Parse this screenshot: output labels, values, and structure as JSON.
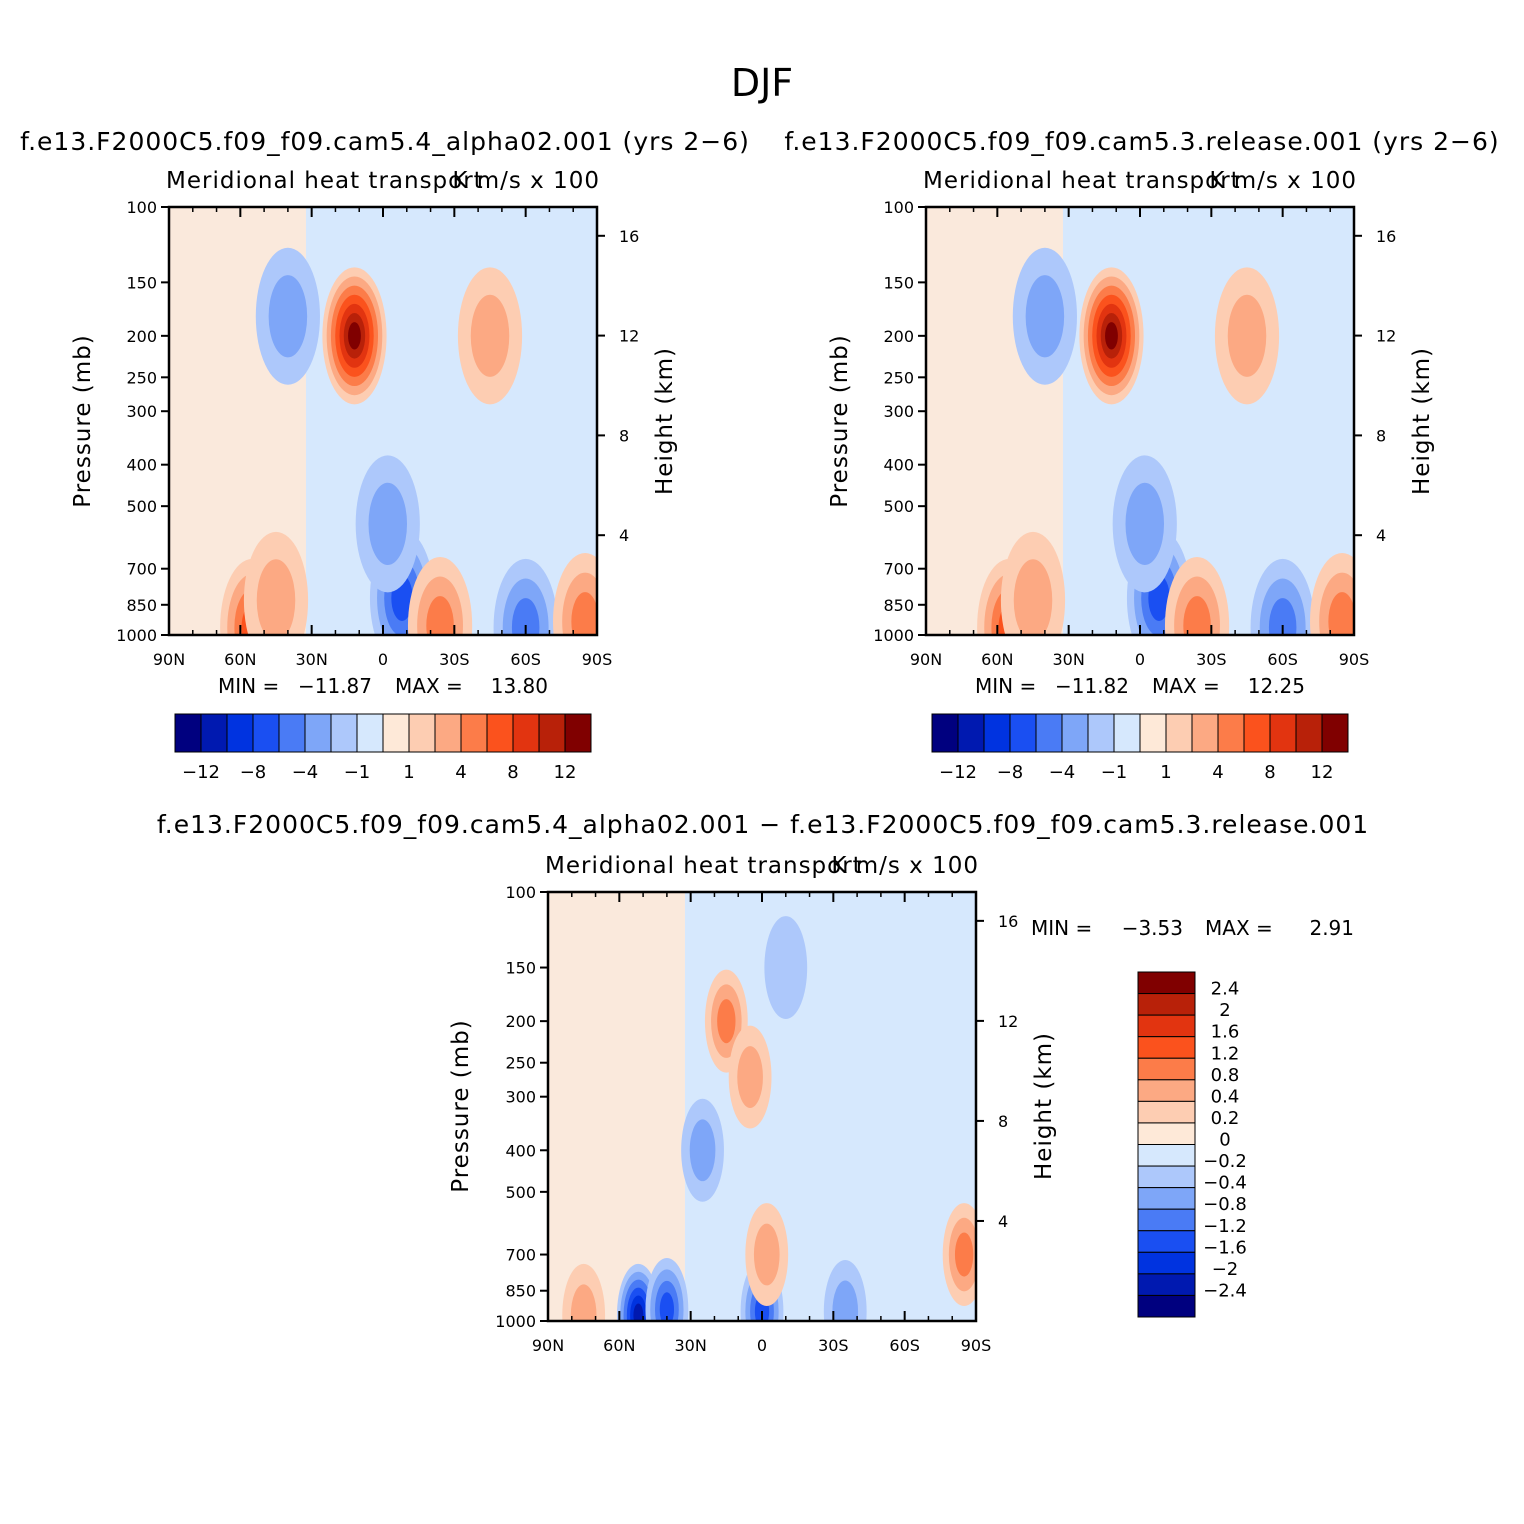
{
  "page": {
    "title": "DJF"
  },
  "colors": {
    "neg": [
      "#00007f",
      "#0019b0",
      "#0033e0",
      "#1a4ff2",
      "#4a7bf5",
      "#7ea6f8",
      "#adc8fb",
      "#d6e8fd"
    ],
    "pos": [
      "#fee9d8",
      "#fdcdb2",
      "#fca983",
      "#fc7c49",
      "#fb521d",
      "#e23410",
      "#b82109",
      "#800000"
    ]
  },
  "chart_data": [
    {
      "type": "heatmap",
      "title": "f.e13.F2000C5.f09_f09.cam5.4_alpha02.001 (yrs 2−6)",
      "left_label": "Meridional heat transport",
      "right_label": "K m/s x 100",
      "xlabel": "",
      "ylabel": "Pressure (mb)",
      "y2label": "Height (km)",
      "x_ticks": [
        "90N",
        "60N",
        "30N",
        "0",
        "30S",
        "60S",
        "90S"
      ],
      "y_ticks": [
        "100",
        "150",
        "200",
        "250",
        "300",
        "400",
        "500",
        "700",
        "850",
        "1000"
      ],
      "y2_ticks": [
        "16",
        "12",
        "8",
        "4"
      ],
      "min_label": "MIN =",
      "min_value": "−11.87",
      "max_label": "MAX =",
      "max_value": "13.80",
      "colorbar_labels": [
        "−12",
        "−8",
        "−4",
        "−1",
        "1",
        "4",
        "8",
        "12"
      ],
      "field": [
        {
          "lat": -12,
          "p": 950,
          "v": -11.87
        },
        {
          "lat": -8,
          "p": 820,
          "v": -6
        },
        {
          "lat": -2,
          "p": 550,
          "v": -3
        },
        {
          "lat": 55,
          "p": 960,
          "v": 6
        },
        {
          "lat": 45,
          "p": 830,
          "v": 3
        },
        {
          "lat": 12,
          "p": 200,
          "v": 13.8
        },
        {
          "lat": 40,
          "p": 180,
          "v": -2
        },
        {
          "lat": -24,
          "p": 950,
          "v": 4
        },
        {
          "lat": -60,
          "p": 960,
          "v": -4
        },
        {
          "lat": -85,
          "p": 930,
          "v": 5
        },
        {
          "lat": -45,
          "p": 200,
          "v": 2
        }
      ]
    },
    {
      "type": "heatmap",
      "title": "f.e13.F2000C5.f09_f09.cam5.3.release.001 (yrs 2−6)",
      "left_label": "Meridional heat transport",
      "right_label": "K m/s x 100",
      "xlabel": "",
      "ylabel": "Pressure (mb)",
      "y2label": "Height (km)",
      "x_ticks": [
        "90N",
        "60N",
        "30N",
        "0",
        "30S",
        "60S",
        "90S"
      ],
      "y_ticks": [
        "100",
        "150",
        "200",
        "250",
        "300",
        "400",
        "500",
        "700",
        "850",
        "1000"
      ],
      "y2_ticks": [
        "16",
        "12",
        "8",
        "4"
      ],
      "min_label": "MIN =",
      "min_value": "−11.82",
      "max_label": "MAX =",
      "max_value": "12.25",
      "colorbar_labels": [
        "−12",
        "−8",
        "−4",
        "−1",
        "1",
        "4",
        "8",
        "12"
      ],
      "field": [
        {
          "lat": -12,
          "p": 950,
          "v": -11.82
        },
        {
          "lat": -8,
          "p": 820,
          "v": -6
        },
        {
          "lat": -2,
          "p": 550,
          "v": -3
        },
        {
          "lat": 55,
          "p": 960,
          "v": 6
        },
        {
          "lat": 45,
          "p": 830,
          "v": 3
        },
        {
          "lat": 12,
          "p": 200,
          "v": 12.25
        },
        {
          "lat": 40,
          "p": 180,
          "v": -2
        },
        {
          "lat": -24,
          "p": 950,
          "v": 4
        },
        {
          "lat": -60,
          "p": 960,
          "v": -4
        },
        {
          "lat": -85,
          "p": 930,
          "v": 5
        },
        {
          "lat": -45,
          "p": 200,
          "v": 2
        }
      ]
    },
    {
      "type": "heatmap",
      "title": "f.e13.F2000C5.f09_f09.cam5.4_alpha02.001 − f.e13.F2000C5.f09_f09.cam5.3.release.001",
      "left_label": "Meridional heat transport",
      "right_label": "K m/s x 100",
      "xlabel": "",
      "ylabel": "Pressure (mb)",
      "y2label": "Height (km)",
      "x_ticks": [
        "90N",
        "60N",
        "30N",
        "0",
        "30S",
        "60S",
        "90S"
      ],
      "y_ticks": [
        "100",
        "150",
        "200",
        "250",
        "300",
        "400",
        "500",
        "700",
        "850",
        "1000"
      ],
      "y2_ticks": [
        "16",
        "12",
        "8",
        "4"
      ],
      "min_label": "MIN =",
      "min_value": "−3.53",
      "max_label": "MAX =",
      "max_value": "2.91",
      "colorbar_labels": [
        "2.4",
        "2",
        "1.6",
        "1.2",
        "0.8",
        "0.4",
        "0.2",
        "0",
        "−0.2",
        "−0.4",
        "−0.8",
        "−1.2",
        "−1.6",
        "−2",
        "−2.4"
      ],
      "field": [
        {
          "lat": 52,
          "p": 970,
          "v": -2.2
        },
        {
          "lat": 40,
          "p": 940,
          "v": -1.2
        },
        {
          "lat": 0,
          "p": 950,
          "v": -1.3
        },
        {
          "lat": 25,
          "p": 400,
          "v": -0.6
        },
        {
          "lat": 15,
          "p": 200,
          "v": 0.8
        },
        {
          "lat": 5,
          "p": 270,
          "v": 0.5
        },
        {
          "lat": -2,
          "p": 700,
          "v": 0.5
        },
        {
          "lat": -35,
          "p": 950,
          "v": -0.4
        },
        {
          "lat": 75,
          "p": 970,
          "v": 0.6
        },
        {
          "lat": -85,
          "p": 700,
          "v": 0.8
        },
        {
          "lat": -10,
          "p": 150,
          "v": -0.3
        }
      ]
    }
  ]
}
